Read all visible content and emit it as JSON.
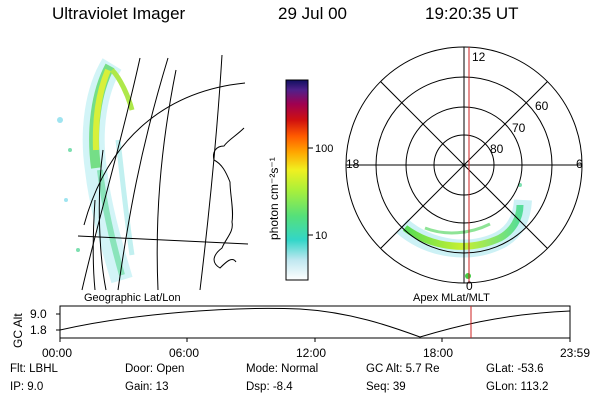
{
  "header": {
    "title": "Ultraviolet Imager",
    "date": "29 Jul 00",
    "time": "19:20:35 UT"
  },
  "colorbar": {
    "label": "photon cm⁻²s⁻¹",
    "ticks": [
      "100",
      "10"
    ],
    "scale": "log"
  },
  "geo_panel": {
    "caption": "Geographic Lat/Lon"
  },
  "polar_panel": {
    "caption": "Apex MLat/MLT",
    "mlt_labels": [
      "12",
      "18",
      "6",
      "0"
    ],
    "mlat_labels": [
      "60",
      "70",
      "80"
    ]
  },
  "orbit_plot": {
    "ylabel": "GC Alt",
    "yticks": [
      "9.0",
      "1.8"
    ],
    "xticks": [
      "00:00",
      "06:00",
      "12:00",
      "18:00",
      "23:59"
    ],
    "current_marker_color": "#cc0000"
  },
  "info": {
    "flt": "Flt:  LBHL",
    "ip": "IP:   9.0",
    "door": "Door:  Open",
    "gain": "Gain:  13",
    "mode": "Mode:  Normal",
    "dsp": "Dsp:      -8.4",
    "gcalt": "GC Alt:  5.7 Re",
    "seq": "Seq:  39",
    "glat": "GLat:  -53.6",
    "glon": "GLon:  113.2"
  }
}
